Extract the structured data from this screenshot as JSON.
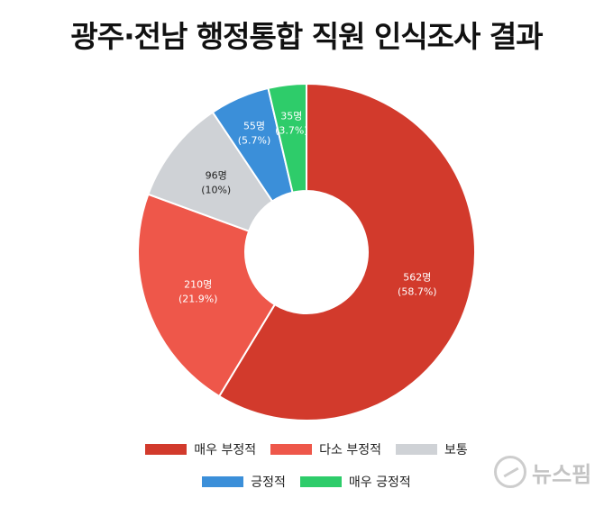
{
  "title": "광주·전남 행정통합 직원 인식조사 결과",
  "watermark_text": "뉴스핌",
  "chart_data": {
    "type": "pie",
    "donut": true,
    "slices": [
      {
        "name": "매우 부정적",
        "value": 562,
        "percent": 58.7,
        "label": "562명",
        "pct_label": "(58.7%)",
        "color": "#d23a2c",
        "text_color": "#ffffff"
      },
      {
        "name": "다소 부정적",
        "value": 210,
        "percent": 21.9,
        "label": "210명",
        "pct_label": "(21.9%)",
        "color": "#ee574a",
        "text_color": "#ffffff"
      },
      {
        "name": "보통",
        "value": 96,
        "percent": 10.0,
        "label": "96명",
        "pct_label": "(10%)",
        "color": "#cfd2d6",
        "text_color": "#222222"
      },
      {
        "name": "긍정적",
        "value": 55,
        "percent": 5.7,
        "label": "55명",
        "pct_label": "(5.7%)",
        "color": "#3b8fd9",
        "text_color": "#ffffff"
      },
      {
        "name": "매우 긍정적",
        "value": 35,
        "percent": 3.7,
        "label": "35명",
        "pct_label": "(3.7%)",
        "color": "#2ecc6a",
        "text_color": "#ffffff"
      }
    ],
    "legend": {
      "placement": "bottom",
      "rows": [
        [
          "매우 부정적",
          "다소 부정적",
          "보통"
        ],
        [
          "긍정적",
          "매우 긍정적"
        ]
      ]
    }
  }
}
